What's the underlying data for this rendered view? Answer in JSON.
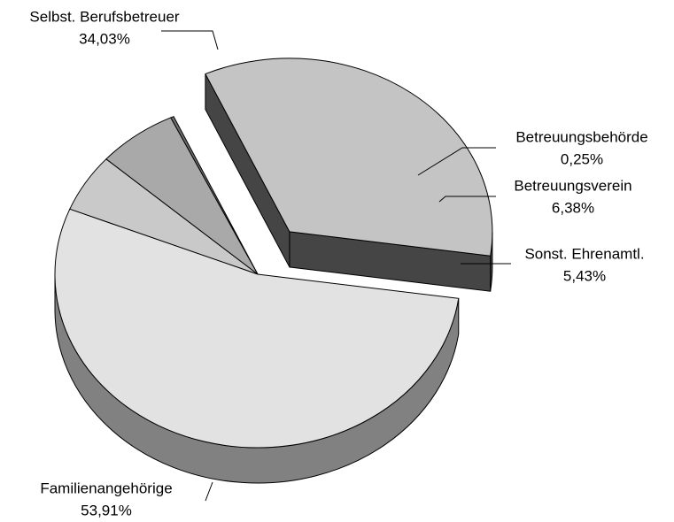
{
  "chart_data": {
    "type": "pie",
    "categories": [
      "Selbst. Berufsbetreuer",
      "Betreuungsbehörde",
      "Betreuungsverein",
      "Sonst. Ehrenamtl.",
      "Familienangehörige"
    ],
    "values": [
      34.03,
      0.25,
      6.38,
      5.43,
      53.91
    ],
    "value_labels": [
      "34,03%",
      "0,25%",
      "6,38%",
      "5,43%",
      "53,91%"
    ],
    "colors": [
      "#c4c4c4",
      "#6e6e6e",
      "#a9a9a9",
      "#c9c9c9",
      "#e2e2e2"
    ],
    "exploded": [
      0
    ]
  }
}
